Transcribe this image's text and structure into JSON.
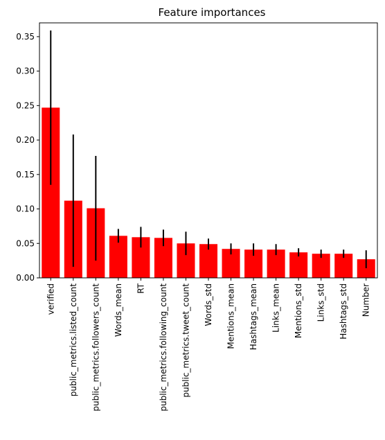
{
  "chart_data": {
    "type": "bar",
    "title": "Feature importances",
    "xlabel": "",
    "ylabel": "",
    "bar_color": "#ff0000",
    "error_color": "#000000",
    "grid": false,
    "ylim": [
      0,
      0.37
    ],
    "yticks": [
      0.0,
      0.05,
      0.1,
      0.15,
      0.2,
      0.25,
      0.3,
      0.35
    ],
    "ytick_labels": [
      "0.00",
      "0.05",
      "0.10",
      "0.15",
      "0.20",
      "0.25",
      "0.30",
      "0.35"
    ],
    "categories": [
      "verified",
      "public_metrics.listed_count",
      "public_metrics.followers_count",
      "Words_mean",
      "RT",
      "public_metrics.following_count",
      "public_metrics.tweet_count",
      "Words_std",
      "Mentions_mean",
      "Hashtags_mean",
      "Links_mean",
      "Mentions_std",
      "Links_std",
      "Hashtags_std",
      "Number"
    ],
    "values": [
      0.247,
      0.112,
      0.101,
      0.061,
      0.059,
      0.058,
      0.05,
      0.049,
      0.042,
      0.041,
      0.041,
      0.037,
      0.035,
      0.035,
      0.027
    ],
    "errors": [
      0.112,
      0.096,
      0.076,
      0.01,
      0.015,
      0.012,
      0.017,
      0.008,
      0.008,
      0.009,
      0.008,
      0.006,
      0.006,
      0.006,
      0.013
    ]
  }
}
